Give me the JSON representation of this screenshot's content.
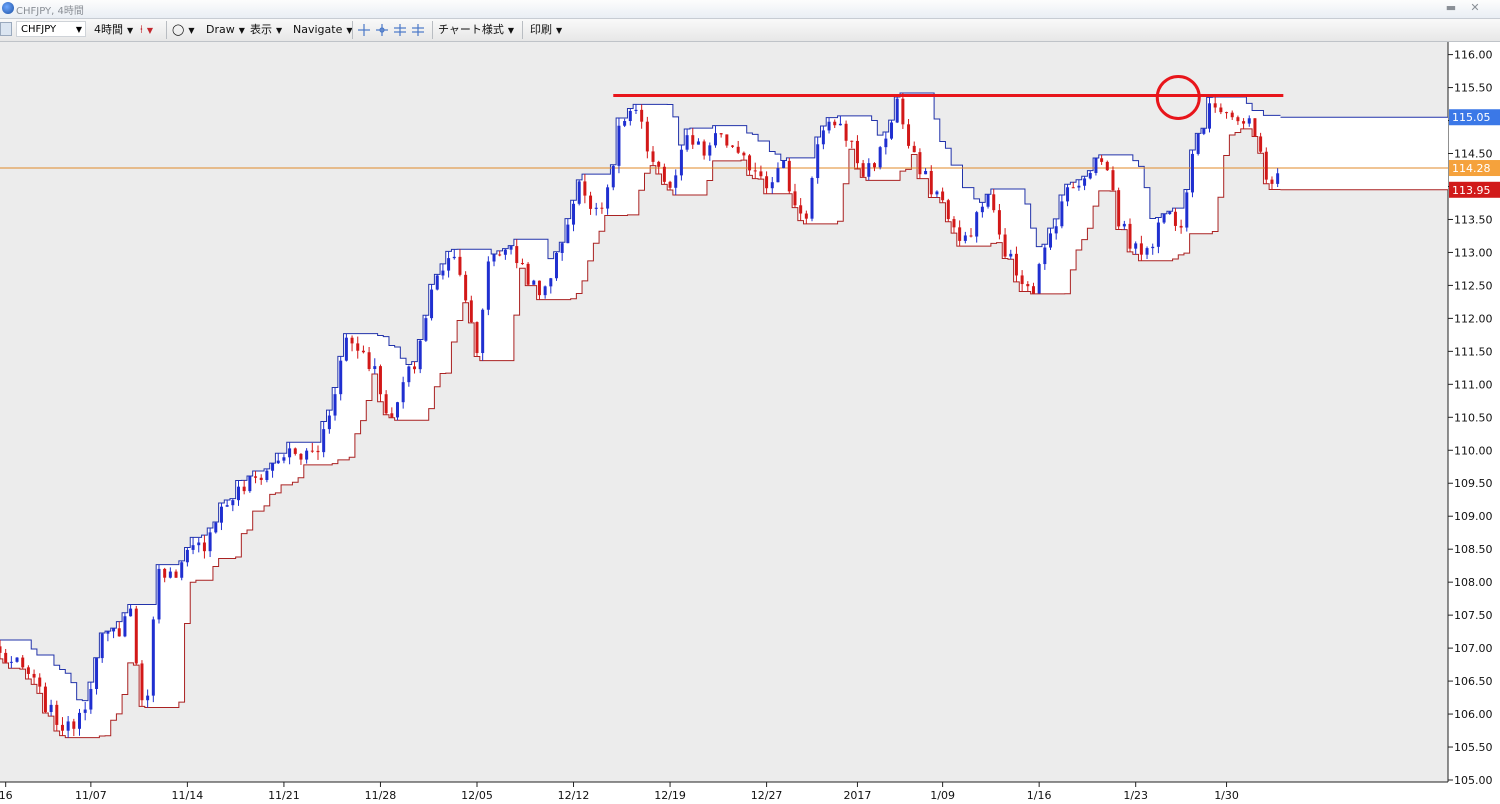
{
  "window": {
    "title": "CHFJPY, 4時間",
    "minimize_glyph": "▬",
    "close_glyph": "✕"
  },
  "toolbar": {
    "symbol": "CHFJPY",
    "timeframe": "4時間",
    "draw": "Draw",
    "display": "表示",
    "navigate": "Navigate",
    "chart_style": "チャート様式",
    "print": "印刷",
    "dropdown_glyph": "▼",
    "circle_tool_glyph": "◯",
    "candle_tool_glyph": "⍿"
  },
  "chart_data": {
    "type": "candlestick",
    "y_ticks": [
      "116.00",
      "115.50",
      "115.00",
      "114.50",
      "114.00",
      "113.50",
      "113.00",
      "112.50",
      "112.00",
      "111.50",
      "111.00",
      "110.50",
      "110.00",
      "109.50",
      "109.00",
      "108.50",
      "108.00",
      "107.50",
      "107.00",
      "106.50",
      "106.00",
      "105.50",
      "105.00"
    ],
    "y_tick_values": [
      116.0,
      115.5,
      115.0,
      114.5,
      114.0,
      113.5,
      113.0,
      112.5,
      112.0,
      111.5,
      111.0,
      110.5,
      110.0,
      109.5,
      109.0,
      108.5,
      108.0,
      107.5,
      107.0,
      106.5,
      106.0,
      105.5,
      105.0
    ],
    "ylim": [
      105.0,
      116.1
    ],
    "x_labels": [
      "16",
      "11/07",
      "11/14",
      "11/21",
      "11/28",
      "12/05",
      "12/12",
      "12/19",
      "12/27",
      "2017",
      "1/09",
      "1/16",
      "1/23",
      "1/30"
    ],
    "x_label_index": [
      -6,
      9,
      26,
      43,
      60,
      77,
      94,
      111,
      128,
      144,
      159,
      176,
      193,
      209
    ],
    "x_index_range": [
      -7,
      248
    ],
    "price_tags": [
      {
        "value": 115.05,
        "label": "115.05",
        "color": "#3b78e7"
      },
      {
        "value": 114.28,
        "label": "114.28",
        "color": "#f5a23c"
      },
      {
        "value": 113.95,
        "label": "113.95",
        "color": "#d11a1a"
      }
    ],
    "horizontal_lines": [
      {
        "value": 114.28,
        "color": "#e08a2a",
        "style": "current-price"
      }
    ],
    "resistance_line": {
      "value": 115.38,
      "from_index": 101,
      "to_index": 219,
      "color": "#e8151b"
    },
    "highlight_circle": {
      "index": 200.5,
      "value": 115.35,
      "color": "#e8151b"
    },
    "band_upper_color": "#2233aa",
    "band_lower_color": "#aa2222",
    "up_color": "#1f2fd0",
    "down_color": "#d21818",
    "anchors": [
      [
        -7,
        106.9
      ],
      [
        -2,
        106.6
      ],
      [
        2,
        106.0
      ],
      [
        5,
        105.75
      ],
      [
        8,
        106.2
      ],
      [
        11,
        107.1
      ],
      [
        14,
        107.3
      ],
      [
        16,
        107.6
      ],
      [
        18,
        106.1
      ],
      [
        19,
        106.4
      ],
      [
        21,
        108.3
      ],
      [
        24,
        108.0
      ],
      [
        26,
        108.4
      ],
      [
        29,
        108.6
      ],
      [
        31,
        109.0
      ],
      [
        34,
        109.3
      ],
      [
        37,
        109.5
      ],
      [
        40,
        109.7
      ],
      [
        43,
        109.95
      ],
      [
        46,
        109.9
      ],
      [
        49,
        110.0
      ],
      [
        51,
        110.6
      ],
      [
        54,
        111.7
      ],
      [
        57,
        111.5
      ],
      [
        59,
        111.2
      ],
      [
        62,
        110.4
      ],
      [
        64,
        111.0
      ],
      [
        66,
        111.3
      ],
      [
        69,
        112.4
      ],
      [
        72,
        113.0
      ],
      [
        74,
        112.8
      ],
      [
        77,
        111.4
      ],
      [
        79,
        112.9
      ],
      [
        82,
        113.1
      ],
      [
        85,
        112.8
      ],
      [
        88,
        112.3
      ],
      [
        91,
        112.9
      ],
      [
        93,
        113.5
      ],
      [
        95,
        114.0
      ],
      [
        98,
        113.7
      ],
      [
        100,
        113.85
      ],
      [
        102,
        114.9
      ],
      [
        105,
        115.1
      ],
      [
        107,
        114.6
      ],
      [
        109,
        114.3
      ],
      [
        111,
        113.9
      ],
      [
        114,
        114.7
      ],
      [
        117,
        114.5
      ],
      [
        120,
        114.8
      ],
      [
        123,
        114.4
      ],
      [
        126,
        114.3
      ],
      [
        128,
        114.1
      ],
      [
        131,
        114.3
      ],
      [
        133,
        113.7
      ],
      [
        135,
        113.6
      ],
      [
        137,
        114.6
      ],
      [
        140,
        115.0
      ],
      [
        142,
        114.8
      ],
      [
        145,
        114.2
      ],
      [
        148,
        114.5
      ],
      [
        151,
        115.3
      ],
      [
        153,
        114.6
      ],
      [
        155,
        114.2
      ],
      [
        158,
        113.9
      ],
      [
        160,
        113.6
      ],
      [
        162,
        113.1
      ],
      [
        165,
        113.5
      ],
      [
        167,
        113.9
      ],
      [
        169,
        113.2
      ],
      [
        172,
        112.7
      ],
      [
        175,
        112.5
      ],
      [
        177,
        113.0
      ],
      [
        180,
        113.8
      ],
      [
        183,
        114.1
      ],
      [
        186,
        114.4
      ],
      [
        188,
        114.3
      ],
      [
        190,
        113.5
      ],
      [
        193,
        113.0
      ],
      [
        196,
        113.2
      ],
      [
        198,
        113.6
      ],
      [
        201,
        113.5
      ],
      [
        203,
        114.6
      ],
      [
        205,
        115.0
      ],
      [
        207,
        115.25
      ],
      [
        209,
        115.2
      ],
      [
        211,
        115.0
      ],
      [
        213,
        114.9
      ],
      [
        215,
        114.5
      ],
      [
        216,
        114.2
      ],
      [
        217,
        114.1
      ],
      [
        218,
        114.2
      ]
    ]
  }
}
